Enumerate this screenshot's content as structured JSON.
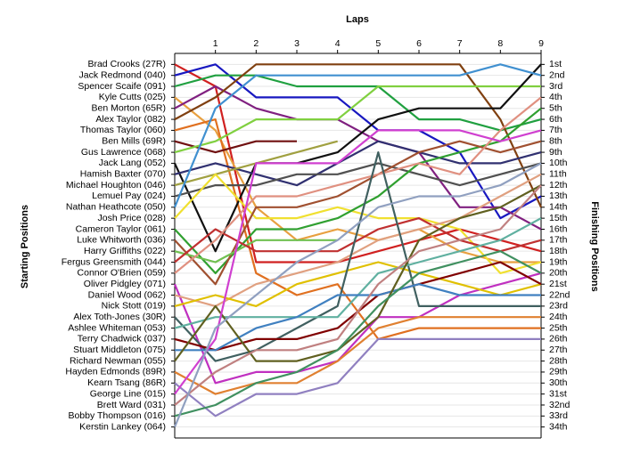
{
  "chart_data": {
    "type": "line",
    "title": "Laps",
    "y_label": "Starting Positions",
    "y2_label": "Finishing Positions",
    "x": [
      0,
      1,
      2,
      3,
      4,
      5,
      6,
      7,
      8,
      9
    ],
    "xlim": [
      0,
      9
    ],
    "xticks": [
      1,
      2,
      3,
      4,
      5,
      6,
      7,
      8,
      9
    ],
    "ylim": [
      0,
      35
    ],
    "inverted": true,
    "grid": true,
    "yticks": [
      {
        "value": 1,
        "label": "Brad Crooks (27R)"
      },
      {
        "value": 2,
        "label": "Jack Redmond (040)"
      },
      {
        "value": 3,
        "label": "Spencer Scaife (091)"
      },
      {
        "value": 4,
        "label": "Kyle Cutts (025)"
      },
      {
        "value": 5,
        "label": "Ben Morton (65R)"
      },
      {
        "value": 6,
        "label": "Alex Taylor (082)"
      },
      {
        "value": 7,
        "label": "Thomas Taylor (060)"
      },
      {
        "value": 8,
        "label": "Ben Mills (69R)"
      },
      {
        "value": 9,
        "label": "Gus Lawrence (068)"
      },
      {
        "value": 10,
        "label": "Jack Lang (052)"
      },
      {
        "value": 11,
        "label": "Hamish Baxter (070)"
      },
      {
        "value": 12,
        "label": "Michael Houghton (046)"
      },
      {
        "value": 13,
        "label": "Lemuel Pay (024)"
      },
      {
        "value": 14,
        "label": "Nathan Heathcote (050)"
      },
      {
        "value": 15,
        "label": "Josh Price (028)"
      },
      {
        "value": 16,
        "label": "Cameron Taylor (061)"
      },
      {
        "value": 17,
        "label": "Luke Whitworth (036)"
      },
      {
        "value": 18,
        "label": "Harry Griffiths (022)"
      },
      {
        "value": 19,
        "label": "Fergus Greensmith (044)"
      },
      {
        "value": 20,
        "label": "Connor O'Brien (059)"
      },
      {
        "value": 21,
        "label": "Oliver Pidgley (071)"
      },
      {
        "value": 22,
        "label": "Daniel Wood (062)"
      },
      {
        "value": 23,
        "label": "Nick Stott (019)"
      },
      {
        "value": 24,
        "label": "Alex Toth-Jones (30R)"
      },
      {
        "value": 25,
        "label": "Ashlee Whiteman (053)"
      },
      {
        "value": 26,
        "label": "Terry Chadwick (037)"
      },
      {
        "value": 27,
        "label": "Stuart Middleton (075)"
      },
      {
        "value": 28,
        "label": "Richard Newman (055)"
      },
      {
        "value": 29,
        "label": "Hayden Edmonds (89R)"
      },
      {
        "value": 30,
        "label": "Kearn Tsang (86R)"
      },
      {
        "value": 31,
        "label": "George Line (015)"
      },
      {
        "value": 32,
        "label": "Brett Ward (031)"
      },
      {
        "value": 33,
        "label": "Bobby Thompson (016)"
      },
      {
        "value": 34,
        "label": "Kerstin Lankey (064)"
      }
    ],
    "y2ticks": [
      {
        "value": 1,
        "label": "1st"
      },
      {
        "value": 2,
        "label": "2nd"
      },
      {
        "value": 3,
        "label": "3rd"
      },
      {
        "value": 4,
        "label": "4th"
      },
      {
        "value": 5,
        "label": "5th"
      },
      {
        "value": 6,
        "label": "6th"
      },
      {
        "value": 7,
        "label": "7th"
      },
      {
        "value": 8,
        "label": "8th"
      },
      {
        "value": 9,
        "label": "9th"
      },
      {
        "value": 10,
        "label": "10th"
      },
      {
        "value": 11,
        "label": "11th"
      },
      {
        "value": 12,
        "label": "12th"
      },
      {
        "value": 13,
        "label": "13th"
      },
      {
        "value": 14,
        "label": "14th"
      },
      {
        "value": 15,
        "label": "15th"
      },
      {
        "value": 16,
        "label": "16th"
      },
      {
        "value": 17,
        "label": "17th"
      },
      {
        "value": 18,
        "label": "18th"
      },
      {
        "value": 19,
        "label": "19th"
      },
      {
        "value": 20,
        "label": "20th"
      },
      {
        "value": 21,
        "label": "21st"
      },
      {
        "value": 22,
        "label": "22nd"
      },
      {
        "value": 23,
        "label": "23rd"
      },
      {
        "value": 24,
        "label": "24th"
      },
      {
        "value": 25,
        "label": "25th"
      },
      {
        "value": 26,
        "label": "26th"
      },
      {
        "value": 27,
        "label": "27th"
      },
      {
        "value": 28,
        "label": "28th"
      },
      {
        "value": 29,
        "label": "29th"
      },
      {
        "value": 30,
        "label": "30th"
      },
      {
        "value": 31,
        "label": "31st"
      },
      {
        "value": 32,
        "label": "32nd"
      },
      {
        "value": 33,
        "label": "33rd"
      },
      {
        "value": 34,
        "label": "34th"
      }
    ],
    "series": [
      {
        "color": "#d02020",
        "values": [
          1,
          3,
          19,
          19,
          19,
          18,
          17,
          16,
          17,
          18
        ]
      },
      {
        "color": "#1818c0",
        "values": [
          2,
          1,
          4,
          4,
          4,
          7,
          7,
          9,
          15,
          13
        ]
      },
      {
        "color": "#20a040",
        "values": [
          3,
          2,
          2,
          3,
          3,
          3,
          6,
          6,
          7,
          6
        ]
      },
      {
        "color": "#e8a040",
        "values": [
          4,
          7,
          14,
          17,
          16,
          17,
          16,
          18,
          19,
          19
        ]
      },
      {
        "color": "#802080",
        "values": [
          5,
          3,
          5,
          6,
          6,
          8,
          9,
          14,
          14,
          16
        ]
      },
      {
        "color": "#804010",
        "values": [
          6,
          4,
          1,
          1,
          1,
          1,
          1,
          1,
          6,
          14
        ]
      },
      {
        "color": "#e07020",
        "values": [
          7,
          6,
          20,
          22,
          21,
          26,
          25,
          25,
          25,
          25
        ]
      },
      {
        "color": "#701010",
        "values": [
          8,
          9,
          8,
          8,
          null,
          null,
          null,
          null,
          null,
          null
        ]
      },
      {
        "color": "#80d040",
        "values": [
          9,
          8,
          6,
          6,
          6,
          3,
          3,
          3,
          3,
          3
        ]
      },
      {
        "color": "#101010",
        "values": [
          10,
          18,
          10,
          10,
          9,
          6,
          5,
          5,
          5,
          1
        ]
      },
      {
        "color": "#303070",
        "values": [
          11,
          10,
          11,
          12,
          10,
          8,
          9,
          10,
          10,
          9
        ]
      },
      {
        "color": "#a0a040",
        "values": [
          12,
          11,
          10,
          9,
          8,
          null,
          null,
          null,
          null,
          null
        ]
      },
      {
        "color": "#505050",
        "values": [
          13,
          12,
          12,
          11,
          11,
          10,
          11,
          12,
          11,
          10
        ]
      },
      {
        "color": "#4090d0",
        "values": [
          14,
          5,
          2,
          2,
          2,
          2,
          2,
          2,
          1,
          2
        ]
      },
      {
        "color": "#f0e030",
        "values": [
          15,
          11,
          15,
          15,
          14,
          15,
          15,
          16,
          20,
          19
        ]
      },
      {
        "color": "#30a030",
        "values": [
          16,
          20,
          16,
          16,
          15,
          13,
          10,
          9,
          8,
          5
        ]
      },
      {
        "color": "#a05030",
        "values": [
          17,
          21,
          14,
          14,
          13,
          11,
          9,
          8,
          9,
          8
        ]
      },
      {
        "color": "#70c050",
        "values": [
          18,
          19,
          17,
          17,
          17,
          null,
          null,
          null,
          null,
          null
        ]
      },
      {
        "color": "#c03030",
        "values": [
          19,
          16,
          18,
          18,
          18,
          16,
          15,
          17,
          18,
          17
        ]
      },
      {
        "color": "#e09080",
        "values": [
          20,
          17,
          13,
          13,
          12,
          11,
          10,
          11,
          7,
          4
        ]
      },
      {
        "color": "#c030c0",
        "values": [
          21,
          30,
          29,
          29,
          28,
          24,
          24,
          22,
          21,
          20
        ]
      },
      {
        "color": "#e0a080",
        "values": [
          22,
          23,
          21,
          20,
          19,
          17,
          16,
          15,
          13,
          11
        ]
      },
      {
        "color": "#e0c000",
        "values": [
          23,
          22,
          23,
          21,
          20,
          19,
          20,
          21,
          22,
          21
        ]
      },
      {
        "color": "#406060",
        "values": [
          24,
          28,
          27,
          25,
          23,
          9,
          23,
          23,
          23,
          23
        ]
      },
      {
        "color": "#60b0a0",
        "values": [
          25,
          24,
          24,
          24,
          24,
          20,
          19,
          18,
          17,
          15
        ]
      },
      {
        "color": "#800000",
        "values": [
          26,
          27,
          26,
          26,
          25,
          22,
          21,
          20,
          19,
          21
        ]
      },
      {
        "color": "#4080c0",
        "values": [
          27,
          27,
          25,
          24,
          22,
          22,
          21,
          22,
          22,
          22
        ]
      },
      {
        "color": "#606020",
        "values": [
          28,
          23,
          28,
          28,
          27,
          24,
          17,
          15,
          14,
          12
        ]
      },
      {
        "color": "#e08030",
        "values": [
          29,
          31,
          30,
          30,
          28,
          25,
          24,
          24,
          24,
          24
        ]
      },
      {
        "color": "#9080c0",
        "values": [
          30,
          33,
          31,
          31,
          30,
          26,
          26,
          26,
          26,
          26
        ]
      },
      {
        "color": "#d040d0",
        "values": [
          31,
          26,
          10,
          10,
          10,
          7,
          7,
          7,
          8,
          7
        ]
      },
      {
        "color": "#c08080",
        "values": [
          32,
          29,
          27,
          27,
          26,
          21,
          18,
          17,
          16,
          12
        ]
      },
      {
        "color": "#409060",
        "values": [
          33,
          32,
          30,
          29,
          27,
          23,
          20,
          19,
          18,
          20
        ]
      },
      {
        "color": "#90a0c0",
        "values": [
          34,
          25,
          22,
          19,
          17,
          14,
          13,
          13,
          12,
          10
        ]
      }
    ]
  }
}
